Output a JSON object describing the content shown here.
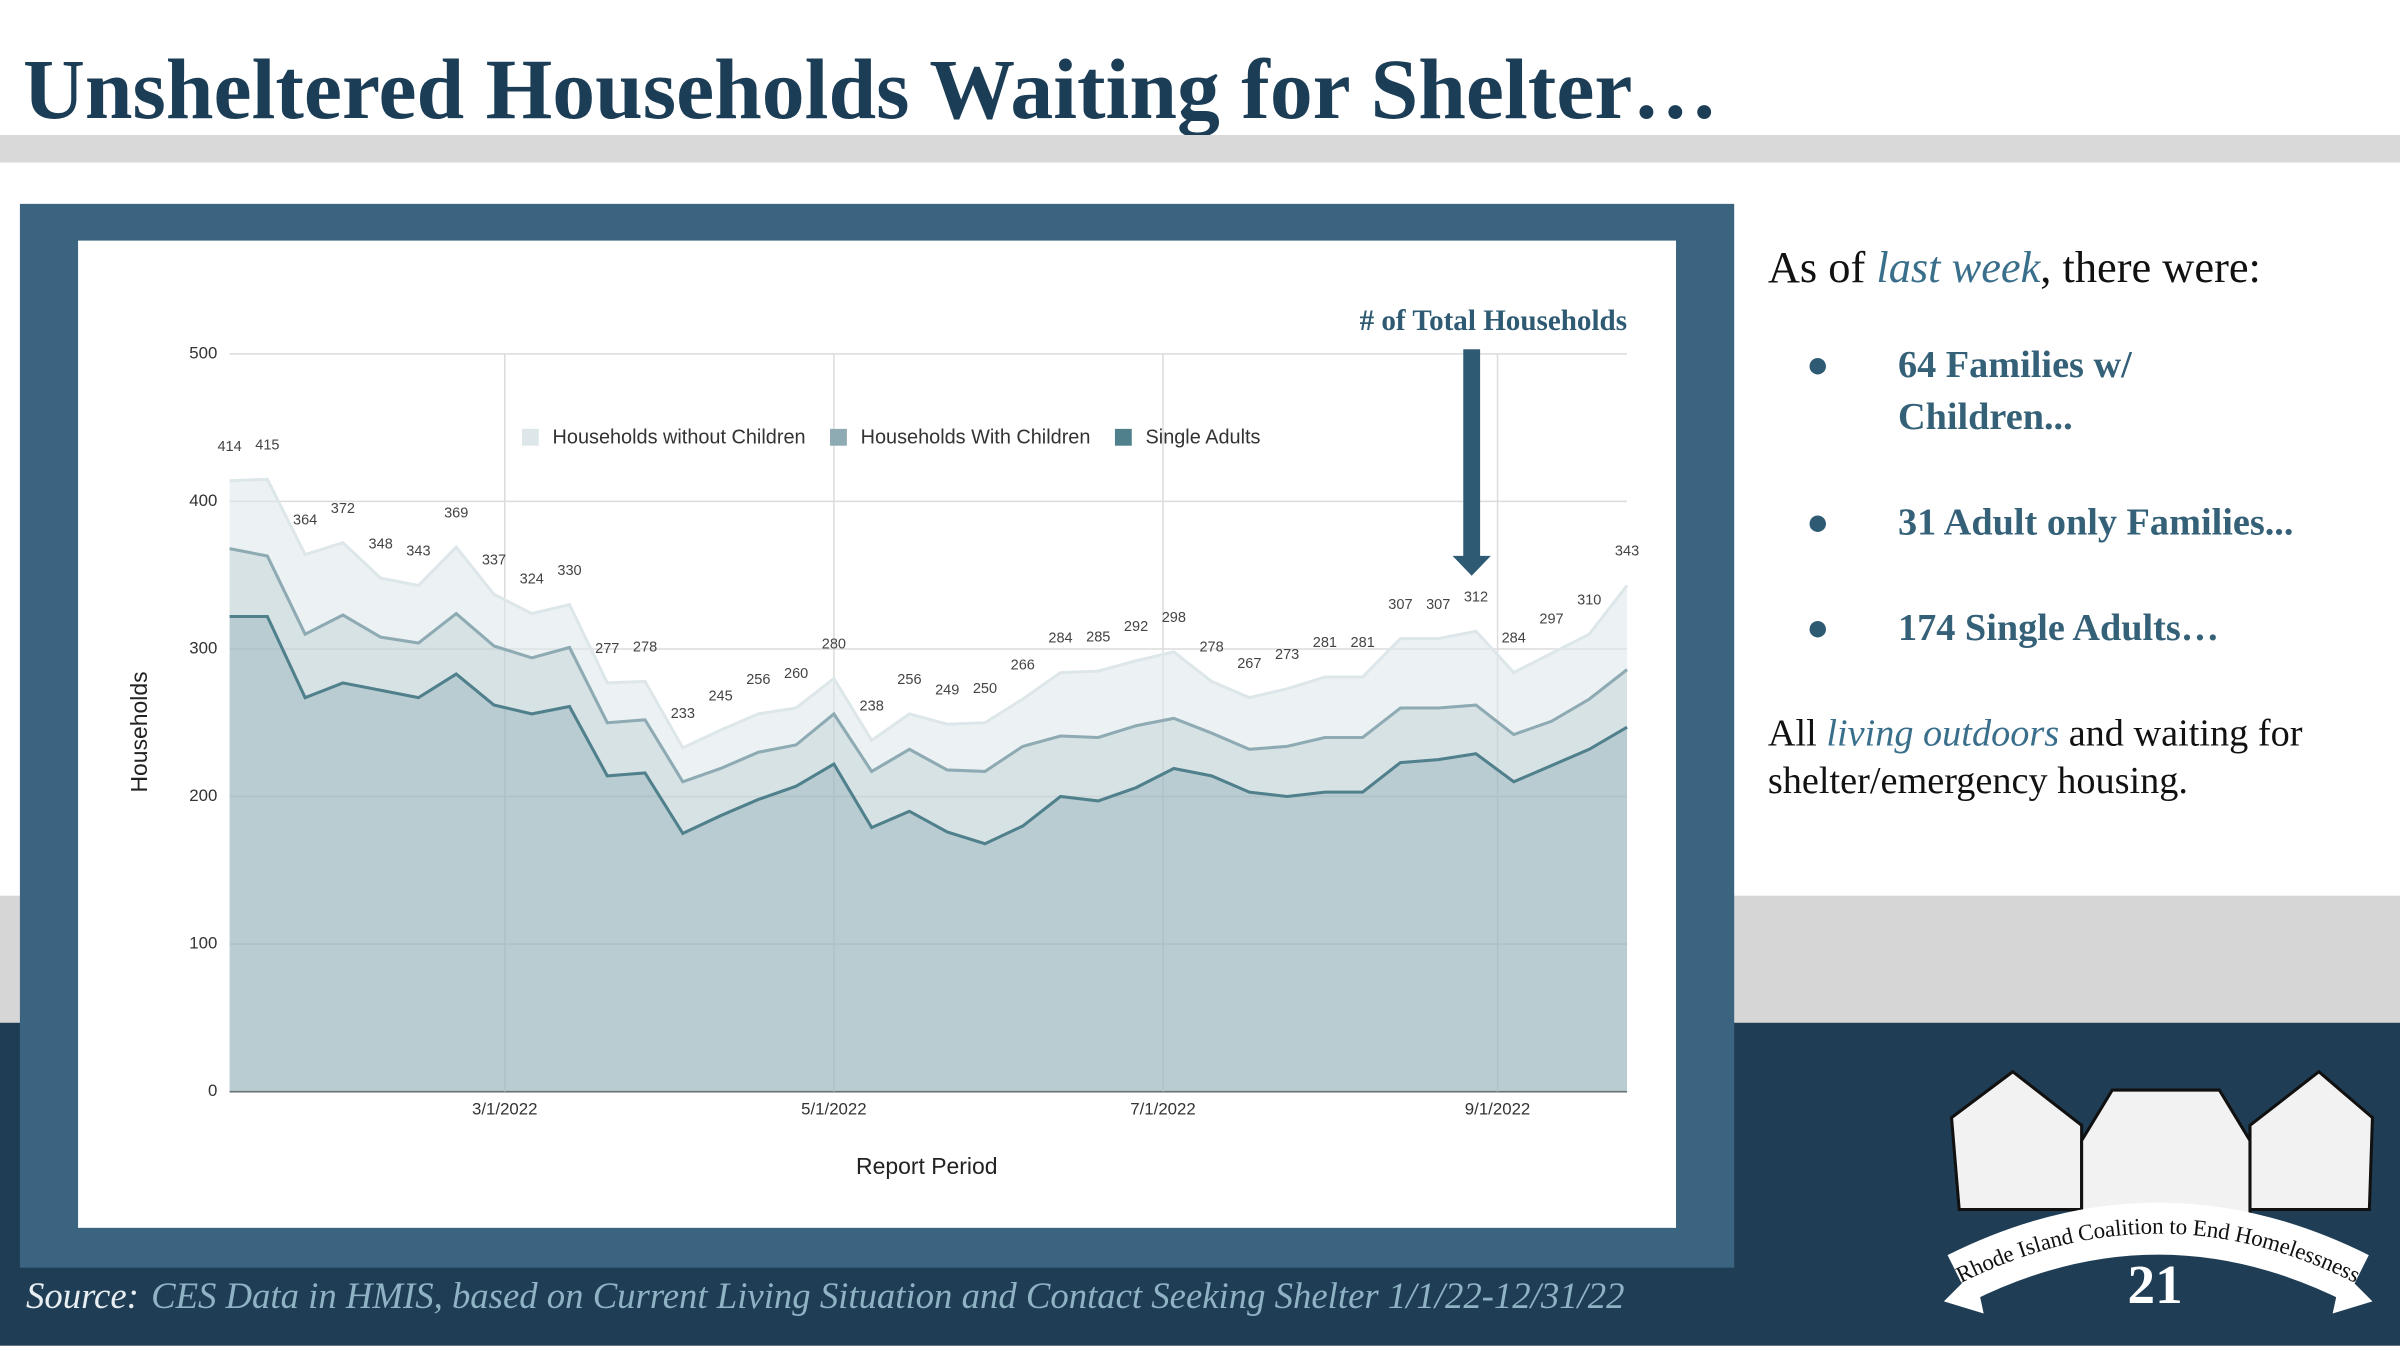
{
  "slide": {
    "title": "Unsheltered Households Waiting for Shelter…",
    "intro": [
      "As of ",
      "last week",
      ", there were:"
    ],
    "bullets": [
      "64 Families w/ Children...",
      "31 Adult only Families...",
      "174 Single Adults…"
    ],
    "closing": [
      "All ",
      "living outdoors",
      " and waiting for shelter/emergency housing."
    ],
    "source": {
      "label": "Source:",
      "text": "CES Data in HMIS, based on Current Living Situation and Contact Seeking Shelter 1/1/22-12/31/22"
    },
    "logo_text": "Rhode Island Coalition to End Homelessness",
    "page_number": "21"
  },
  "chart_data": {
    "type": "area",
    "annotation": "# of Total Households",
    "x_label": "Report Period",
    "y_label": "Households",
    "x": [
      "1/9/2022",
      "1/16/2022",
      "1/23/2022",
      "1/30/2022",
      "2/6/2022",
      "2/13/2022",
      "2/20/2022",
      "2/27/2022",
      "3/6/2022",
      "3/13/2022",
      "3/20/2022",
      "3/27/2022",
      "4/3/2022",
      "4/10/2022",
      "4/17/2022",
      "4/24/2022",
      "5/1/2022",
      "5/8/2022",
      "5/15/2022",
      "5/22/2022",
      "5/29/2022",
      "6/5/2022",
      "6/12/2022",
      "6/19/2022",
      "6/26/2022",
      "7/3/2022",
      "7/10/2022",
      "7/17/2022",
      "7/24/2022",
      "7/31/2022",
      "8/7/2022",
      "8/14/2022",
      "8/21/2022",
      "8/28/2022",
      "9/4/2022",
      "9/11/2022",
      "9/18/2022",
      "9/25/2022"
    ],
    "xlim": [
      "1/9/2022",
      "9/25/2022"
    ],
    "xticks": [
      "3/1/2022",
      "5/1/2022",
      "7/1/2022",
      "9/1/2022"
    ],
    "ylim": [
      0,
      500
    ],
    "yticks": [
      0,
      100,
      200,
      300,
      400,
      500
    ],
    "grid": true,
    "legend": "top",
    "series": [
      {
        "name": "Households without Children",
        "color": "#dde7ea",
        "data_labels": true,
        "values": [
          414,
          415,
          364,
          372,
          348,
          343,
          369,
          337,
          324,
          330,
          277,
          278,
          233,
          245,
          256,
          260,
          280,
          238,
          256,
          249,
          250,
          266,
          284,
          285,
          292,
          298,
          278,
          267,
          273,
          281,
          281,
          307,
          307,
          312,
          284,
          297,
          310,
          343
        ]
      },
      {
        "name": "Households With Children",
        "color": "#8eaab3",
        "values": [
          368,
          363,
          310,
          323,
          308,
          304,
          324,
          302,
          294,
          301,
          250,
          252,
          210,
          219,
          230,
          235,
          256,
          217,
          232,
          218,
          217,
          234,
          241,
          240,
          248,
          253,
          243,
          232,
          234,
          240,
          240,
          260,
          260,
          262,
          242,
          251,
          266,
          286
        ]
      },
      {
        "name": "Single Adults",
        "color": "#4f808c",
        "values": [
          322,
          322,
          267,
          277,
          272,
          267,
          283,
          262,
          256,
          261,
          214,
          216,
          175,
          187,
          198,
          207,
          222,
          179,
          190,
          176,
          168,
          180,
          200,
          197,
          206,
          219,
          214,
          203,
          200,
          203,
          203,
          223,
          225,
          229,
          210,
          221,
          232,
          247
        ]
      }
    ]
  }
}
